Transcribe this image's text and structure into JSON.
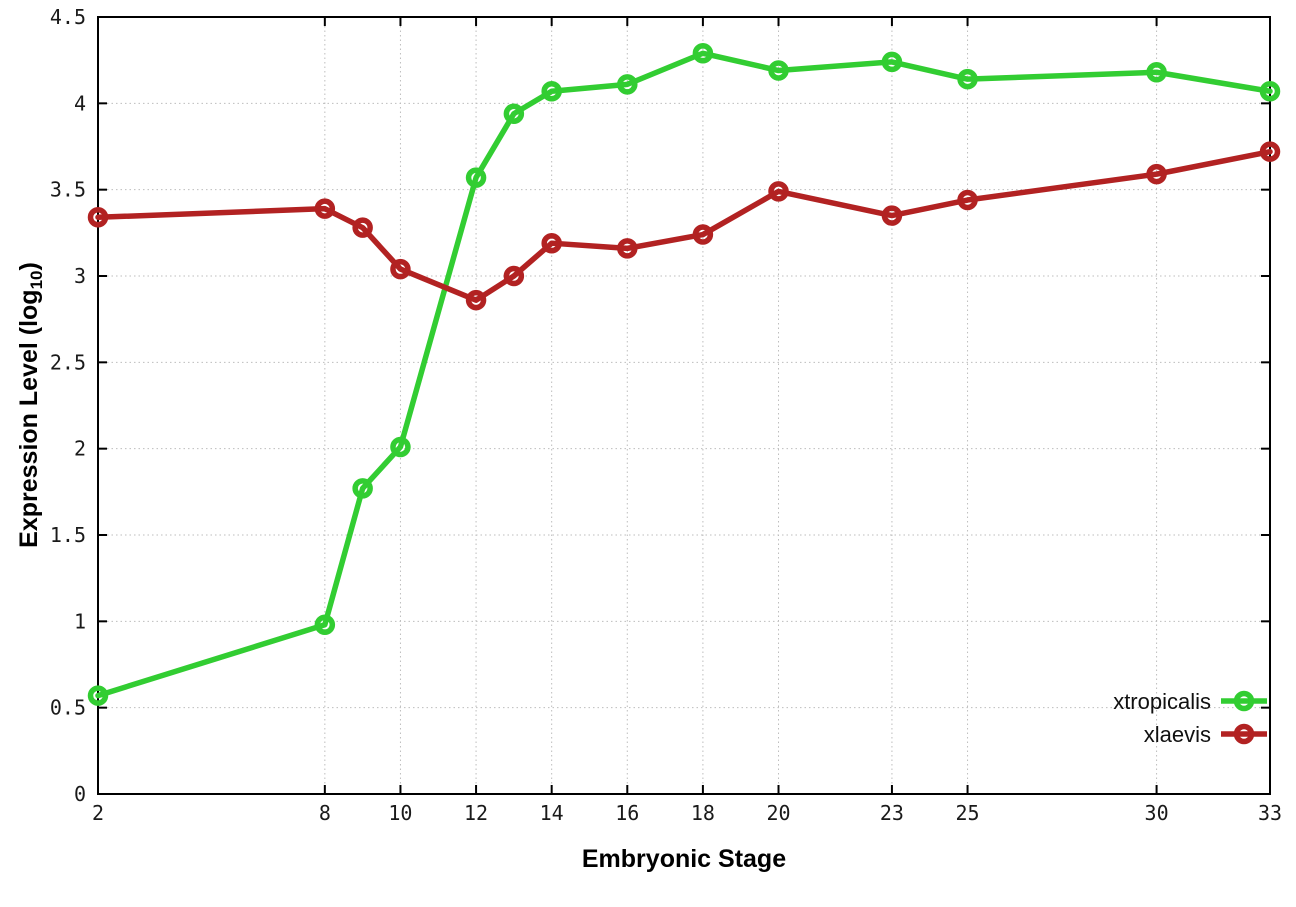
{
  "figure": {
    "background": "#ffffff"
  },
  "labels": {
    "x_axis_title": "Embryonic Stage",
    "y_axis_title_main": "Expression Level (log",
    "y_axis_title_sub": "10",
    "y_axis_title_close": ")"
  },
  "chart_data": {
    "type": "line",
    "title": "",
    "xlabel": "Embryonic Stage",
    "ylabel": "Expression Level (log10)",
    "xlim": [
      2,
      33
    ],
    "ylim": [
      0,
      4.5
    ],
    "grid": true,
    "legend_position": "inside-bottom-right",
    "x": [
      2,
      8,
      9,
      10,
      12,
      13,
      14,
      16,
      18,
      20,
      23,
      25,
      30,
      33
    ],
    "series": [
      {
        "name": "xtropicalis",
        "color": "#32cd32",
        "marker": "open-circle",
        "values": [
          0.57,
          0.98,
          1.77,
          2.01,
          3.57,
          3.94,
          4.07,
          4.11,
          4.29,
          4.19,
          4.24,
          4.14,
          4.18,
          4.07
        ]
      },
      {
        "name": "xlaevis",
        "color": "#b22222",
        "marker": "open-circle",
        "values": [
          3.34,
          3.39,
          3.28,
          3.04,
          2.86,
          3.0,
          3.19,
          3.16,
          3.24,
          3.49,
          3.35,
          3.44,
          3.59,
          3.72
        ]
      }
    ],
    "x_ticks": [
      2,
      8,
      10,
      12,
      14,
      16,
      18,
      20,
      23,
      25,
      30,
      33
    ],
    "x_tick_labels": [
      "2",
      "8",
      "10",
      "12",
      "14",
      "16",
      "18",
      "20",
      "23",
      "25",
      "30",
      "33"
    ],
    "y_ticks": [
      0,
      0.5,
      1,
      1.5,
      2,
      2.5,
      3,
      3.5,
      4,
      4.5
    ],
    "y_tick_labels": [
      "0",
      "0.5",
      "1",
      "1.5",
      "2",
      "2.5",
      "3",
      "3.5",
      "4",
      "4.5"
    ],
    "colors": {
      "grid": "#bdbdbd",
      "axis": "#000000",
      "tick_text": "#1a1a1a"
    }
  }
}
